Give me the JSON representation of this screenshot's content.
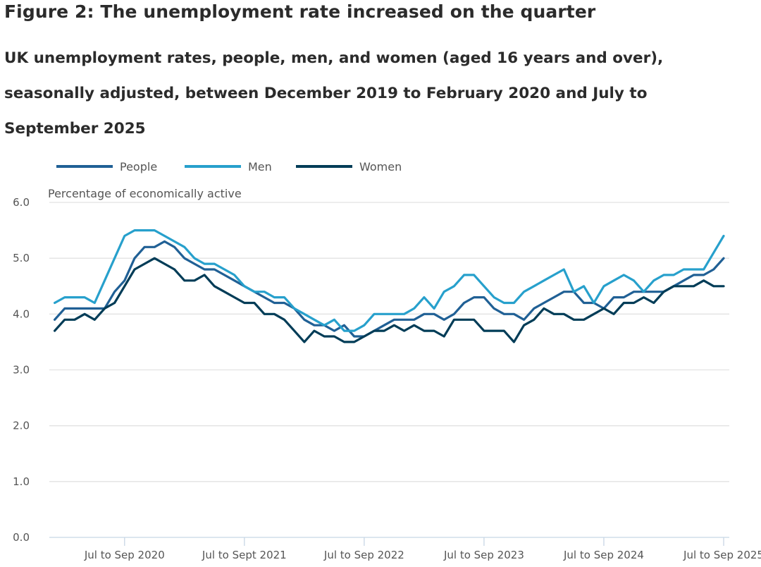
{
  "figure": {
    "title": "Figure 2: The unemployment rate increased on the quarter",
    "subtitle": "UK unemployment rates, people, men, and women (aged 16 years and over), seasonally adjusted, between December 2019 to February 2020 and July to September 2025"
  },
  "chart_data": {
    "type": "line",
    "title": "Figure 2: The unemployment rate increased on the quarter",
    "subtitle": "UK unemployment rates, people, men, and women (aged 16 years and over), seasonally adjusted, between December 2019 to February 2020 and July to September 2025",
    "ylabel": "Percentage of economically active",
    "xlabel": "",
    "ylim": [
      0,
      6
    ],
    "yticks": [
      "0.0",
      "1.0",
      "2.0",
      "3.0",
      "4.0",
      "5.0",
      "6.0"
    ],
    "x_start": "Dec 2019 to Feb 2020",
    "x_end": "Jul to Sep 2025",
    "xticks": [
      {
        "index": 7,
        "label": "Jul to Sep 2020"
      },
      {
        "index": 19,
        "label": "Jul to Sept 2021"
      },
      {
        "index": 31,
        "label": "Jul to Sep 2022"
      },
      {
        "index": 43,
        "label": "Jul to Sep 2023"
      },
      {
        "index": 55,
        "label": "Jul to Sep 2024"
      },
      {
        "index": 67,
        "label": "Jul to Sep 2025"
      }
    ],
    "grid": true,
    "legend_position": "top-left",
    "series": [
      {
        "name": "People",
        "color": "#206095",
        "values": [
          3.9,
          4.1,
          4.1,
          4.1,
          4.1,
          4.1,
          4.4,
          4.6,
          5.0,
          5.2,
          5.2,
          5.3,
          5.2,
          5.0,
          4.9,
          4.8,
          4.8,
          4.7,
          4.6,
          4.5,
          4.4,
          4.3,
          4.2,
          4.2,
          4.1,
          3.9,
          3.8,
          3.8,
          3.7,
          3.8,
          3.6,
          3.6,
          3.7,
          3.8,
          3.9,
          3.9,
          3.9,
          4.0,
          4.0,
          3.9,
          4.0,
          4.2,
          4.3,
          4.3,
          4.1,
          4.0,
          4.0,
          3.9,
          4.1,
          4.2,
          4.3,
          4.4,
          4.4,
          4.2,
          4.2,
          4.1,
          4.3,
          4.3,
          4.4,
          4.4,
          4.4,
          4.4,
          4.5,
          4.6,
          4.7,
          4.7,
          4.8,
          5.0
        ]
      },
      {
        "name": "Men",
        "color": "#27a0cc",
        "values": [
          4.2,
          4.3,
          4.3,
          4.3,
          4.2,
          4.6,
          5.0,
          5.4,
          5.5,
          5.5,
          5.5,
          5.4,
          5.3,
          5.2,
          5.0,
          4.9,
          4.9,
          4.8,
          4.7,
          4.5,
          4.4,
          4.4,
          4.3,
          4.3,
          4.1,
          4.0,
          3.9,
          3.8,
          3.9,
          3.7,
          3.7,
          3.8,
          4.0,
          4.0,
          4.0,
          4.0,
          4.1,
          4.3,
          4.1,
          4.4,
          4.5,
          4.7,
          4.7,
          4.5,
          4.3,
          4.2,
          4.2,
          4.4,
          4.5,
          4.6,
          4.7,
          4.8,
          4.4,
          4.5,
          4.2,
          4.5,
          4.6,
          4.7,
          4.6,
          4.4,
          4.6,
          4.7,
          4.7,
          4.8,
          4.8,
          4.8,
          5.1,
          5.4
        ]
      },
      {
        "name": "Women",
        "color": "#003c57",
        "values": [
          3.7,
          3.9,
          3.9,
          4.0,
          3.9,
          4.1,
          4.2,
          4.5,
          4.8,
          4.9,
          5.0,
          4.9,
          4.8,
          4.6,
          4.6,
          4.7,
          4.5,
          4.4,
          4.3,
          4.2,
          4.2,
          4.0,
          4.0,
          3.9,
          3.7,
          3.5,
          3.7,
          3.6,
          3.6,
          3.5,
          3.5,
          3.6,
          3.7,
          3.7,
          3.8,
          3.7,
          3.8,
          3.7,
          3.7,
          3.6,
          3.9,
          3.9,
          3.9,
          3.7,
          3.7,
          3.7,
          3.5,
          3.8,
          3.9,
          4.1,
          4.0,
          4.0,
          3.9,
          3.9,
          4.0,
          4.1,
          4.0,
          4.2,
          4.2,
          4.3,
          4.2,
          4.4,
          4.5,
          4.5,
          4.5,
          4.6,
          4.5,
          4.5
        ]
      }
    ]
  }
}
